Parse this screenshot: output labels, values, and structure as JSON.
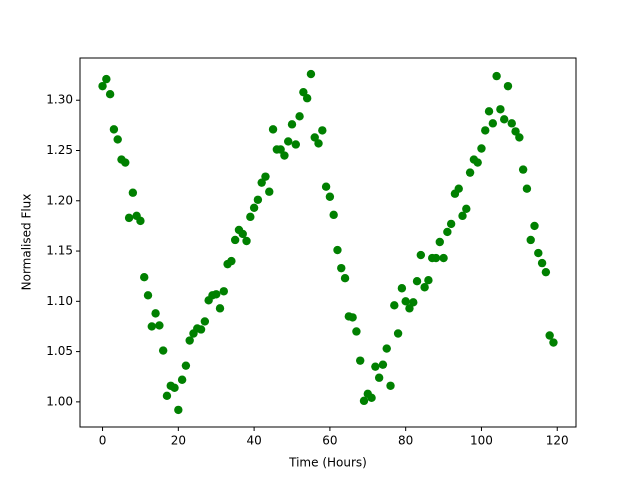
{
  "chart_data": {
    "type": "scatter",
    "xlabel": "Time (Hours)",
    "ylabel": "Normalised Flux",
    "color": "#008000",
    "grid": false,
    "x": [
      0,
      1,
      2,
      3,
      4,
      5,
      6,
      7,
      8,
      9,
      10,
      11,
      12,
      13,
      14,
      15,
      16,
      17,
      18,
      19,
      20,
      21,
      22,
      23,
      24,
      25,
      26,
      27,
      28,
      29,
      30,
      31,
      32,
      33,
      34,
      35,
      36,
      37,
      38,
      39,
      40,
      41,
      42,
      43,
      44,
      45,
      46,
      47,
      48,
      49,
      50,
      51,
      52,
      53,
      54,
      55,
      56,
      57,
      58,
      59,
      60,
      61,
      62,
      63,
      64,
      65,
      66,
      67,
      68,
      69,
      70,
      71,
      72,
      73,
      74,
      75,
      76,
      77,
      78,
      79,
      80,
      81,
      82,
      83,
      84,
      85,
      86,
      87,
      88,
      89,
      90,
      91,
      92,
      93,
      94,
      95,
      96,
      97,
      98,
      99,
      100,
      101,
      102,
      103,
      104,
      105,
      106,
      107,
      108,
      109,
      110,
      111,
      112,
      113,
      114,
      115,
      116,
      117,
      118,
      119
    ],
    "values": [
      1.314,
      1.321,
      1.306,
      1.271,
      1.261,
      1.241,
      1.238,
      1.183,
      1.208,
      1.185,
      1.18,
      1.124,
      1.106,
      1.075,
      1.088,
      1.076,
      1.051,
      1.006,
      1.016,
      1.014,
      0.992,
      1.022,
      1.036,
      1.061,
      1.068,
      1.073,
      1.072,
      1.08,
      1.101,
      1.106,
      1.107,
      1.093,
      1.11,
      1.137,
      1.14,
      1.161,
      1.171,
      1.167,
      1.16,
      1.184,
      1.193,
      1.201,
      1.218,
      1.224,
      1.209,
      1.271,
      1.251,
      1.251,
      1.245,
      1.259,
      1.276,
      1.256,
      1.284,
      1.308,
      1.302,
      1.326,
      1.263,
      1.257,
      1.27,
      1.214,
      1.204,
      1.186,
      1.151,
      1.133,
      1.123,
      1.085,
      1.084,
      1.07,
      1.041,
      1.001,
      1.008,
      1.004,
      1.035,
      1.024,
      1.037,
      1.053,
      1.016,
      1.096,
      1.068,
      1.113,
      1.1,
      1.093,
      1.099,
      1.12,
      1.146,
      1.114,
      1.121,
      1.143,
      1.143,
      1.159,
      1.143,
      1.169,
      1.177,
      1.207,
      1.212,
      1.185,
      1.192,
      1.228,
      1.241,
      1.238,
      1.252,
      1.27,
      1.289,
      1.277,
      1.324,
      1.291,
      1.281,
      1.314,
      1.277,
      1.269,
      1.263,
      1.231,
      1.212,
      1.161,
      1.175,
      1.148,
      1.138,
      1.129,
      1.066,
      1.059
    ],
    "xlim": [
      -5.95,
      124.95
    ],
    "ylim": [
      0.975,
      1.342
    ],
    "xticks": [
      0,
      20,
      40,
      60,
      80,
      100,
      120
    ],
    "yticks": [
      {
        "value": 1.0,
        "label": "1.00"
      },
      1.05,
      {
        "value": 1.1,
        "label": "1.10"
      },
      1.15,
      {
        "value": 1.2,
        "label": "1.20"
      },
      1.25,
      {
        "value": 1.3,
        "label": "1.30"
      }
    ]
  }
}
